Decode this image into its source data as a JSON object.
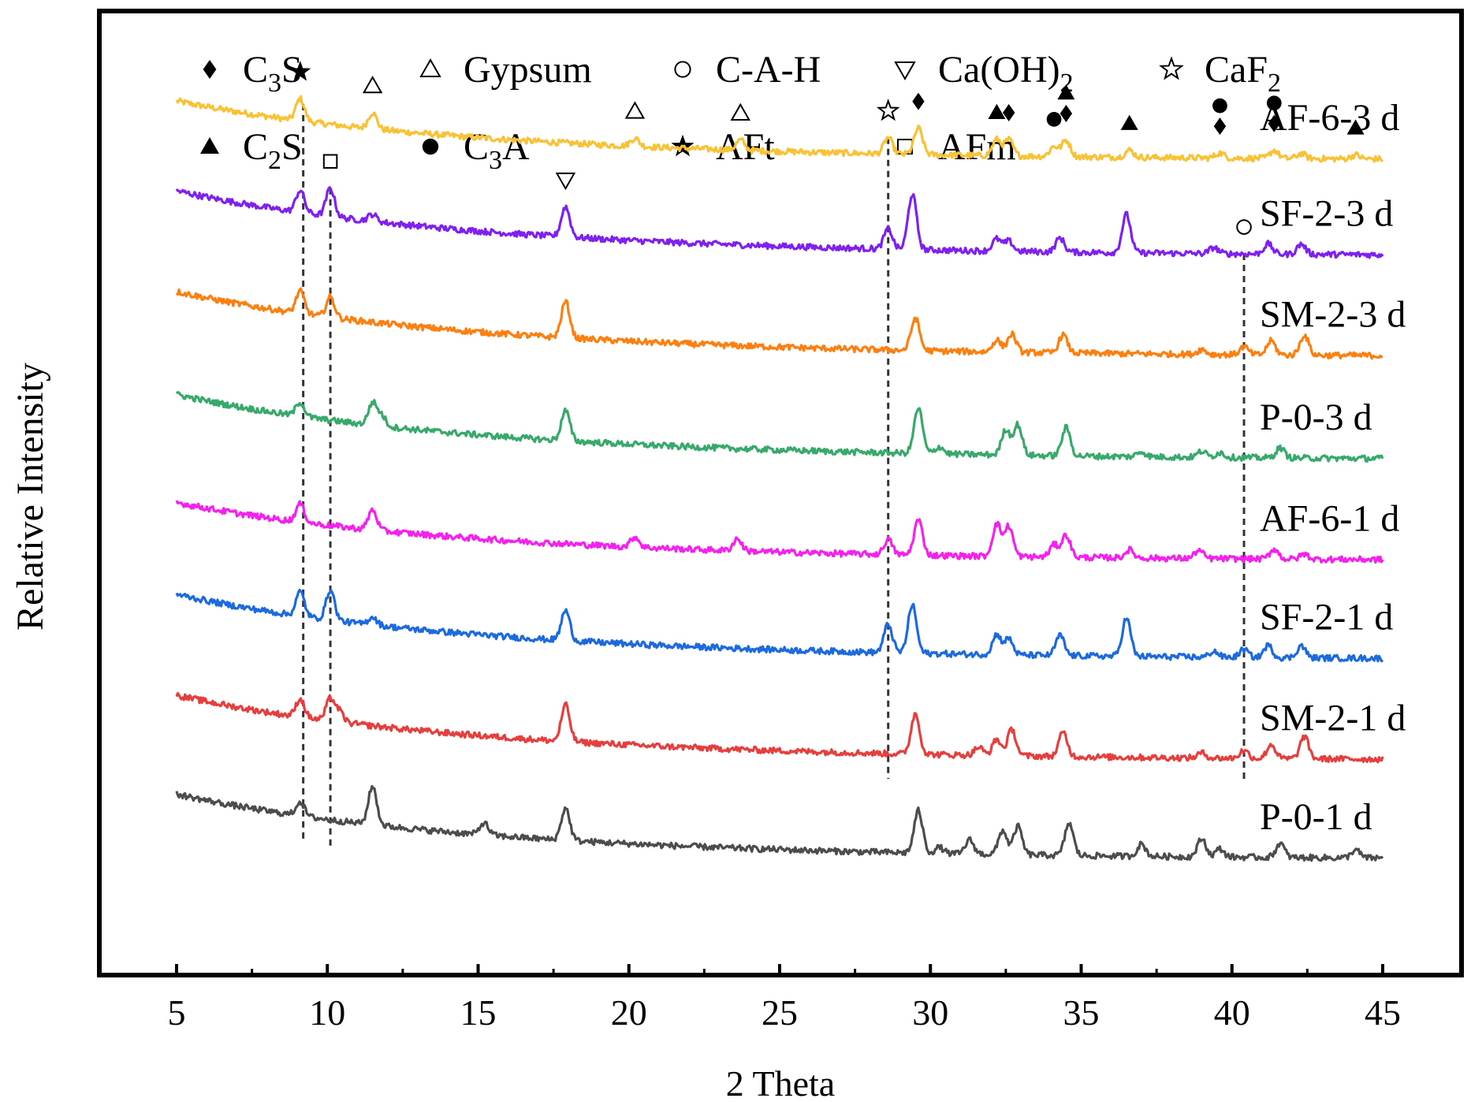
{
  "chart_data": {
    "type": "line",
    "xlabel": "2 Theta",
    "ylabel": "Relative Intensity",
    "xlim": [
      5,
      45
    ],
    "xticks": [
      "5",
      "10",
      "15",
      "20",
      "25",
      "30",
      "35",
      "40",
      "45"
    ],
    "legend": {
      "placement": "top",
      "entries": [
        {
          "symbol": "filled-diamond",
          "pre": "C",
          "sub": "3",
          "post": "S"
        },
        {
          "symbol": "open-triangle-up",
          "pre": "Gypsum",
          "sub": "",
          "post": ""
        },
        {
          "symbol": "open-circle",
          "pre": "C-A-H",
          "sub": "",
          "post": ""
        },
        {
          "symbol": "open-triangle-down",
          "pre": "Ca(OH)",
          "sub": "2",
          "post": ""
        },
        {
          "symbol": "open-star",
          "pre": "CaF",
          "sub": "2",
          "post": ""
        },
        {
          "symbol": "filled-triangle-up",
          "pre": "C",
          "sub": "2",
          "post": "S"
        },
        {
          "symbol": "filled-circle",
          "pre": "C",
          "sub": "3",
          "post": "A"
        },
        {
          "symbol": "filled-star",
          "pre": "AFt",
          "sub": "",
          "post": ""
        },
        {
          "symbol": "open-square",
          "pre": "AFm",
          "sub": "",
          "post": ""
        }
      ]
    },
    "series": [
      {
        "name": "AF-6-3 d",
        "color": "#f9c234",
        "offset": 7.55,
        "drift": 0.56,
        "peaks": [
          [
            9.1,
            0.22
          ],
          [
            11.5,
            0.16
          ],
          [
            20.2,
            0.08
          ],
          [
            23.7,
            0.1
          ],
          [
            28.6,
            0.16
          ],
          [
            29.6,
            0.26
          ],
          [
            32.2,
            0.16
          ],
          [
            32.6,
            0.16
          ],
          [
            34.1,
            0.1
          ],
          [
            34.5,
            0.16
          ],
          [
            36.6,
            0.07
          ],
          [
            39.6,
            0.05
          ],
          [
            41.4,
            0.08
          ],
          [
            42.3,
            0.05
          ],
          [
            44.1,
            0.04
          ]
        ]
      },
      {
        "name": "SF-2-3 d",
        "color": "#7f1ff1",
        "offset": 6.6,
        "drift": 0.62,
        "peaks": [
          [
            9.1,
            0.22
          ],
          [
            10.1,
            0.28
          ],
          [
            11.5,
            0.07
          ],
          [
            17.9,
            0.3
          ],
          [
            28.6,
            0.2
          ],
          [
            29.4,
            0.55
          ],
          [
            32.2,
            0.12
          ],
          [
            32.6,
            0.1
          ],
          [
            34.3,
            0.14
          ],
          [
            36.5,
            0.38
          ],
          [
            39.4,
            0.06
          ],
          [
            41.2,
            0.1
          ],
          [
            42.3,
            0.1
          ]
        ]
      },
      {
        "name": "SM-2-3 d",
        "color": "#ff7f0e",
        "offset": 5.6,
        "drift": 0.62,
        "peaks": [
          [
            9.1,
            0.22
          ],
          [
            10.1,
            0.2
          ],
          [
            17.9,
            0.36
          ],
          [
            29.5,
            0.32
          ],
          [
            32.2,
            0.12
          ],
          [
            32.7,
            0.18
          ],
          [
            34.4,
            0.18
          ],
          [
            39.0,
            0.05
          ],
          [
            40.4,
            0.08
          ],
          [
            41.3,
            0.14
          ],
          [
            42.4,
            0.2
          ]
        ]
      },
      {
        "name": "P-0-3 d",
        "color": "#37a96a",
        "offset": 4.58,
        "drift": 0.62,
        "peaks": [
          [
            9.1,
            0.14
          ],
          [
            11.5,
            0.22
          ],
          [
            11.8,
            0.1
          ],
          [
            17.9,
            0.3
          ],
          [
            29.6,
            0.45
          ],
          [
            30.3,
            0.07
          ],
          [
            32.5,
            0.25
          ],
          [
            32.9,
            0.3
          ],
          [
            34.5,
            0.28
          ],
          [
            37.0,
            0.05
          ],
          [
            39.0,
            0.06
          ],
          [
            39.6,
            0.05
          ],
          [
            41.6,
            0.1
          ]
        ]
      },
      {
        "name": "AF-6-1 d",
        "color": "#f61ff0",
        "offset": 3.58,
        "drift": 0.55,
        "peaks": [
          [
            9.1,
            0.18
          ],
          [
            11.5,
            0.2
          ],
          [
            20.2,
            0.1
          ],
          [
            23.6,
            0.12
          ],
          [
            28.6,
            0.15
          ],
          [
            29.6,
            0.35
          ],
          [
            32.2,
            0.32
          ],
          [
            32.6,
            0.3
          ],
          [
            34.1,
            0.12
          ],
          [
            34.5,
            0.22
          ],
          [
            36.6,
            0.08
          ],
          [
            38.9,
            0.08
          ],
          [
            41.4,
            0.1
          ],
          [
            42.4,
            0.05
          ]
        ]
      },
      {
        "name": "SF-2-1 d",
        "color": "#1c6adf",
        "offset": 2.6,
        "drift": 0.62,
        "peaks": [
          [
            9.1,
            0.24
          ],
          [
            10.1,
            0.3
          ],
          [
            11.5,
            0.08
          ],
          [
            17.9,
            0.3
          ],
          [
            28.6,
            0.28
          ],
          [
            29.4,
            0.48
          ],
          [
            32.2,
            0.2
          ],
          [
            32.6,
            0.16
          ],
          [
            34.3,
            0.2
          ],
          [
            36.5,
            0.38
          ],
          [
            39.4,
            0.06
          ],
          [
            40.4,
            0.08
          ],
          [
            41.2,
            0.12
          ],
          [
            42.3,
            0.12
          ]
        ]
      },
      {
        "name": "SM-2-1 d",
        "color": "#e73d3d",
        "offset": 1.6,
        "drift": 0.62,
        "peaks": [
          [
            9.1,
            0.18
          ],
          [
            10.1,
            0.22
          ],
          [
            10.4,
            0.1
          ],
          [
            17.9,
            0.36
          ],
          [
            29.5,
            0.4
          ],
          [
            31.6,
            0.08
          ],
          [
            32.2,
            0.16
          ],
          [
            32.7,
            0.26
          ],
          [
            34.4,
            0.24
          ],
          [
            39.0,
            0.05
          ],
          [
            40.4,
            0.08
          ],
          [
            41.3,
            0.14
          ],
          [
            42.4,
            0.22
          ]
        ]
      },
      {
        "name": "P-0-1 d",
        "color": "#4c4c4c",
        "offset": 0.62,
        "drift": 0.62,
        "peaks": [
          [
            9.1,
            0.14
          ],
          [
            11.5,
            0.38
          ],
          [
            15.2,
            0.12
          ],
          [
            17.9,
            0.32
          ],
          [
            29.6,
            0.42
          ],
          [
            30.3,
            0.06
          ],
          [
            31.3,
            0.14
          ],
          [
            32.4,
            0.24
          ],
          [
            32.9,
            0.28
          ],
          [
            34.6,
            0.32
          ],
          [
            37.0,
            0.12
          ],
          [
            39.0,
            0.18
          ],
          [
            39.6,
            0.08
          ],
          [
            41.6,
            0.14
          ],
          [
            44.1,
            0.08
          ]
        ]
      }
    ],
    "annotations": [
      {
        "symbol": "filled-star",
        "x": 9.1,
        "series": "AF-6-3 d",
        "level": 0
      },
      {
        "symbol": "open-triangle-up",
        "x": 11.5,
        "series": "AF-6-3 d",
        "level": 0
      },
      {
        "symbol": "open-triangle-up",
        "x": 20.2,
        "series": "AF-6-3 d",
        "level": 0
      },
      {
        "symbol": "open-triangle-up",
        "x": 23.7,
        "series": "AF-6-3 d",
        "level": 0
      },
      {
        "symbol": "open-star",
        "x": 28.6,
        "series": "AF-6-3 d",
        "level": 0
      },
      {
        "symbol": "filled-diamond",
        "x": 29.6,
        "series": "AF-6-3 d",
        "level": 0
      },
      {
        "symbol": "filled-triangle-up",
        "x": 32.2,
        "series": "AF-6-3 d",
        "level": 0
      },
      {
        "symbol": "filled-diamond",
        "x": 32.6,
        "series": "AF-6-3 d",
        "level": 0
      },
      {
        "symbol": "filled-circle",
        "x": 34.1,
        "series": "AF-6-3 d",
        "level": 0
      },
      {
        "symbol": "filled-diamond",
        "x": 34.5,
        "series": "AF-6-3 d",
        "level": 0
      },
      {
        "symbol": "filled-triangle-up",
        "x": 34.5,
        "series": "AF-6-3 d",
        "level": 1
      },
      {
        "symbol": "filled-triangle-up",
        "x": 36.6,
        "series": "AF-6-3 d",
        "level": 0
      },
      {
        "symbol": "filled-diamond",
        "x": 39.6,
        "series": "AF-6-3 d",
        "level": 0
      },
      {
        "symbol": "filled-circle",
        "x": 39.6,
        "series": "AF-6-3 d",
        "level": 1
      },
      {
        "symbol": "filled-diamond",
        "x": 41.4,
        "series": "AF-6-3 d",
        "level": 0
      },
      {
        "symbol": "filled-circle",
        "x": 41.4,
        "series": "AF-6-3 d",
        "level": 1
      },
      {
        "symbol": "filled-triangle-up",
        "x": 44.1,
        "series": "AF-6-3 d",
        "level": 0
      },
      {
        "symbol": "open-square",
        "x": 10.1,
        "series": "SF-2-3 d",
        "level": 0
      },
      {
        "symbol": "open-triangle-down",
        "x": 17.9,
        "series": "SF-2-3 d",
        "level": 0
      },
      {
        "symbol": "open-circle",
        "x": 40.4,
        "series": "SF-2-3 d",
        "level": 0
      }
    ],
    "reference_lines": [
      {
        "x": 9.2,
        "from": "AF-6-3 d",
        "to": "P-0-1 d"
      },
      {
        "x": 10.1,
        "from": "SF-2-3 d",
        "to": "P-0-1 d"
      },
      {
        "x": 28.6,
        "from": "AF-6-3 d",
        "to": "SM-2-1 d"
      },
      {
        "x": 40.4,
        "from": "SF-2-3 d",
        "to": "SM-2-1 d"
      }
    ]
  }
}
